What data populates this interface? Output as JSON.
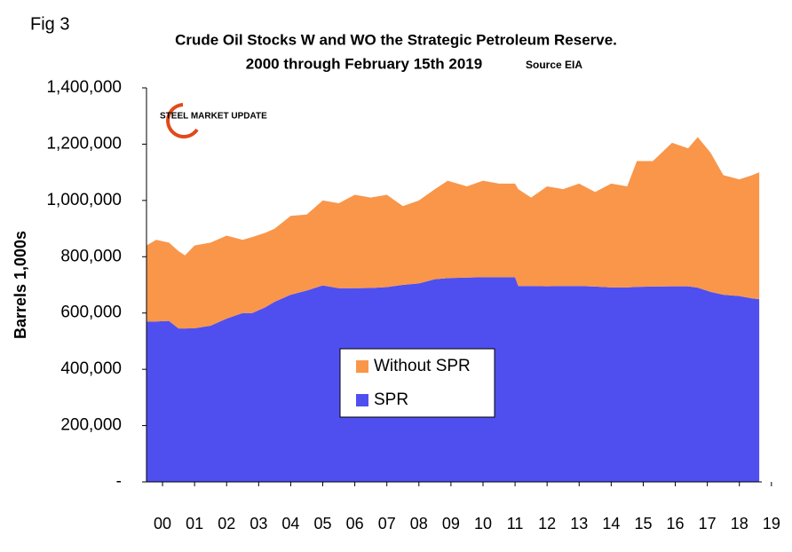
{
  "chart_data": {
    "type": "stacked-area",
    "figure_label": "Fig 3",
    "title": "Crude Oil Stocks W and WO the Strategic Petroleum Reserve.",
    "subtitle": "2000 through February 15th 2019",
    "source": "Source EIA",
    "logo": "STEEL MARKET UPDATE",
    "y_label": "Barrels 1,000s",
    "x": [
      2000.0,
      2000.3,
      2000.7,
      2001.0,
      2001.2,
      2001.5,
      2002.0,
      2002.5,
      2003.0,
      2003.3,
      2003.7,
      2004.0,
      2004.5,
      2005.0,
      2005.5,
      2006.0,
      2006.5,
      2007.0,
      2007.5,
      2008.0,
      2008.5,
      2009.0,
      2009.4,
      2010.0,
      2010.5,
      2011.0,
      2011.5,
      2011.6,
      2012.0,
      2012.5,
      2013.0,
      2013.5,
      2014.0,
      2014.5,
      2015.0,
      2015.3,
      2015.8,
      2016.4,
      2016.9,
      2017.2,
      2017.6,
      2018.0,
      2018.5,
      2018.9,
      2019.12
    ],
    "series": [
      {
        "name": "SPR",
        "color": "#4f4ff0",
        "values": [
          570000,
          570000,
          572000,
          545000,
          545000,
          546000,
          555000,
          580000,
          600000,
          600000,
          620000,
          640000,
          665000,
          680000,
          698000,
          688000,
          688000,
          689000,
          692000,
          700000,
          705000,
          720000,
          724000,
          726000,
          727000,
          727000,
          727000,
          696000,
          696000,
          695000,
          696000,
          696000,
          694000,
          691000,
          691000,
          693000,
          694000,
          695000,
          695000,
          690000,
          675000,
          665000,
          660000,
          652000,
          649000
        ]
      },
      {
        "name": "Without SPR",
        "color": "#f9964a",
        "values": [
          270000,
          290000,
          278000,
          275000,
          260000,
          294000,
          295000,
          295000,
          260000,
          270000,
          265000,
          260000,
          280000,
          270000,
          302000,
          302000,
          332000,
          321000,
          328000,
          280000,
          295000,
          320000,
          346000,
          324000,
          343000,
          333000,
          333000,
          344000,
          314000,
          355000,
          344000,
          364000,
          336000,
          369000,
          359000,
          447000,
          446000,
          510000,
          490000,
          535000,
          495000,
          425000,
          415000,
          438000,
          451000
        ]
      }
    ],
    "xlim": [
      2000,
      2019.2
    ],
    "xticks": [
      {
        "value": 2000.5,
        "label": "00"
      },
      {
        "value": 2001.5,
        "label": "01"
      },
      {
        "value": 2002.5,
        "label": "02"
      },
      {
        "value": 2003.5,
        "label": "03"
      },
      {
        "value": 2004.5,
        "label": "04"
      },
      {
        "value": 2005.5,
        "label": "05"
      },
      {
        "value": 2006.5,
        "label": "06"
      },
      {
        "value": 2007.5,
        "label": "07"
      },
      {
        "value": 2008.5,
        "label": "08"
      },
      {
        "value": 2009.5,
        "label": "09"
      },
      {
        "value": 2010.5,
        "label": "10"
      },
      {
        "value": 2011.5,
        "label": "11"
      },
      {
        "value": 2012.5,
        "label": "12"
      },
      {
        "value": 2013.5,
        "label": "13"
      },
      {
        "value": 2014.5,
        "label": "14"
      },
      {
        "value": 2015.5,
        "label": "15"
      },
      {
        "value": 2016.5,
        "label": "16"
      },
      {
        "value": 2017.5,
        "label": "17"
      },
      {
        "value": 2018.5,
        "label": "18"
      },
      {
        "value": 2019.5,
        "label": "19"
      }
    ],
    "ylim": [
      0,
      1400000
    ],
    "yticks": [
      {
        "value": 0,
        "label": "-"
      },
      {
        "value": 200000,
        "label": "200,000"
      },
      {
        "value": 400000,
        "label": "400,000"
      },
      {
        "value": 600000,
        "label": "600,000"
      },
      {
        "value": 800000,
        "label": "800,000"
      },
      {
        "value": 1000000,
        "label": "1,000,000"
      },
      {
        "value": 1200000,
        "label": "1,200,000"
      },
      {
        "value": 1400000,
        "label": "1,400,000"
      }
    ]
  }
}
